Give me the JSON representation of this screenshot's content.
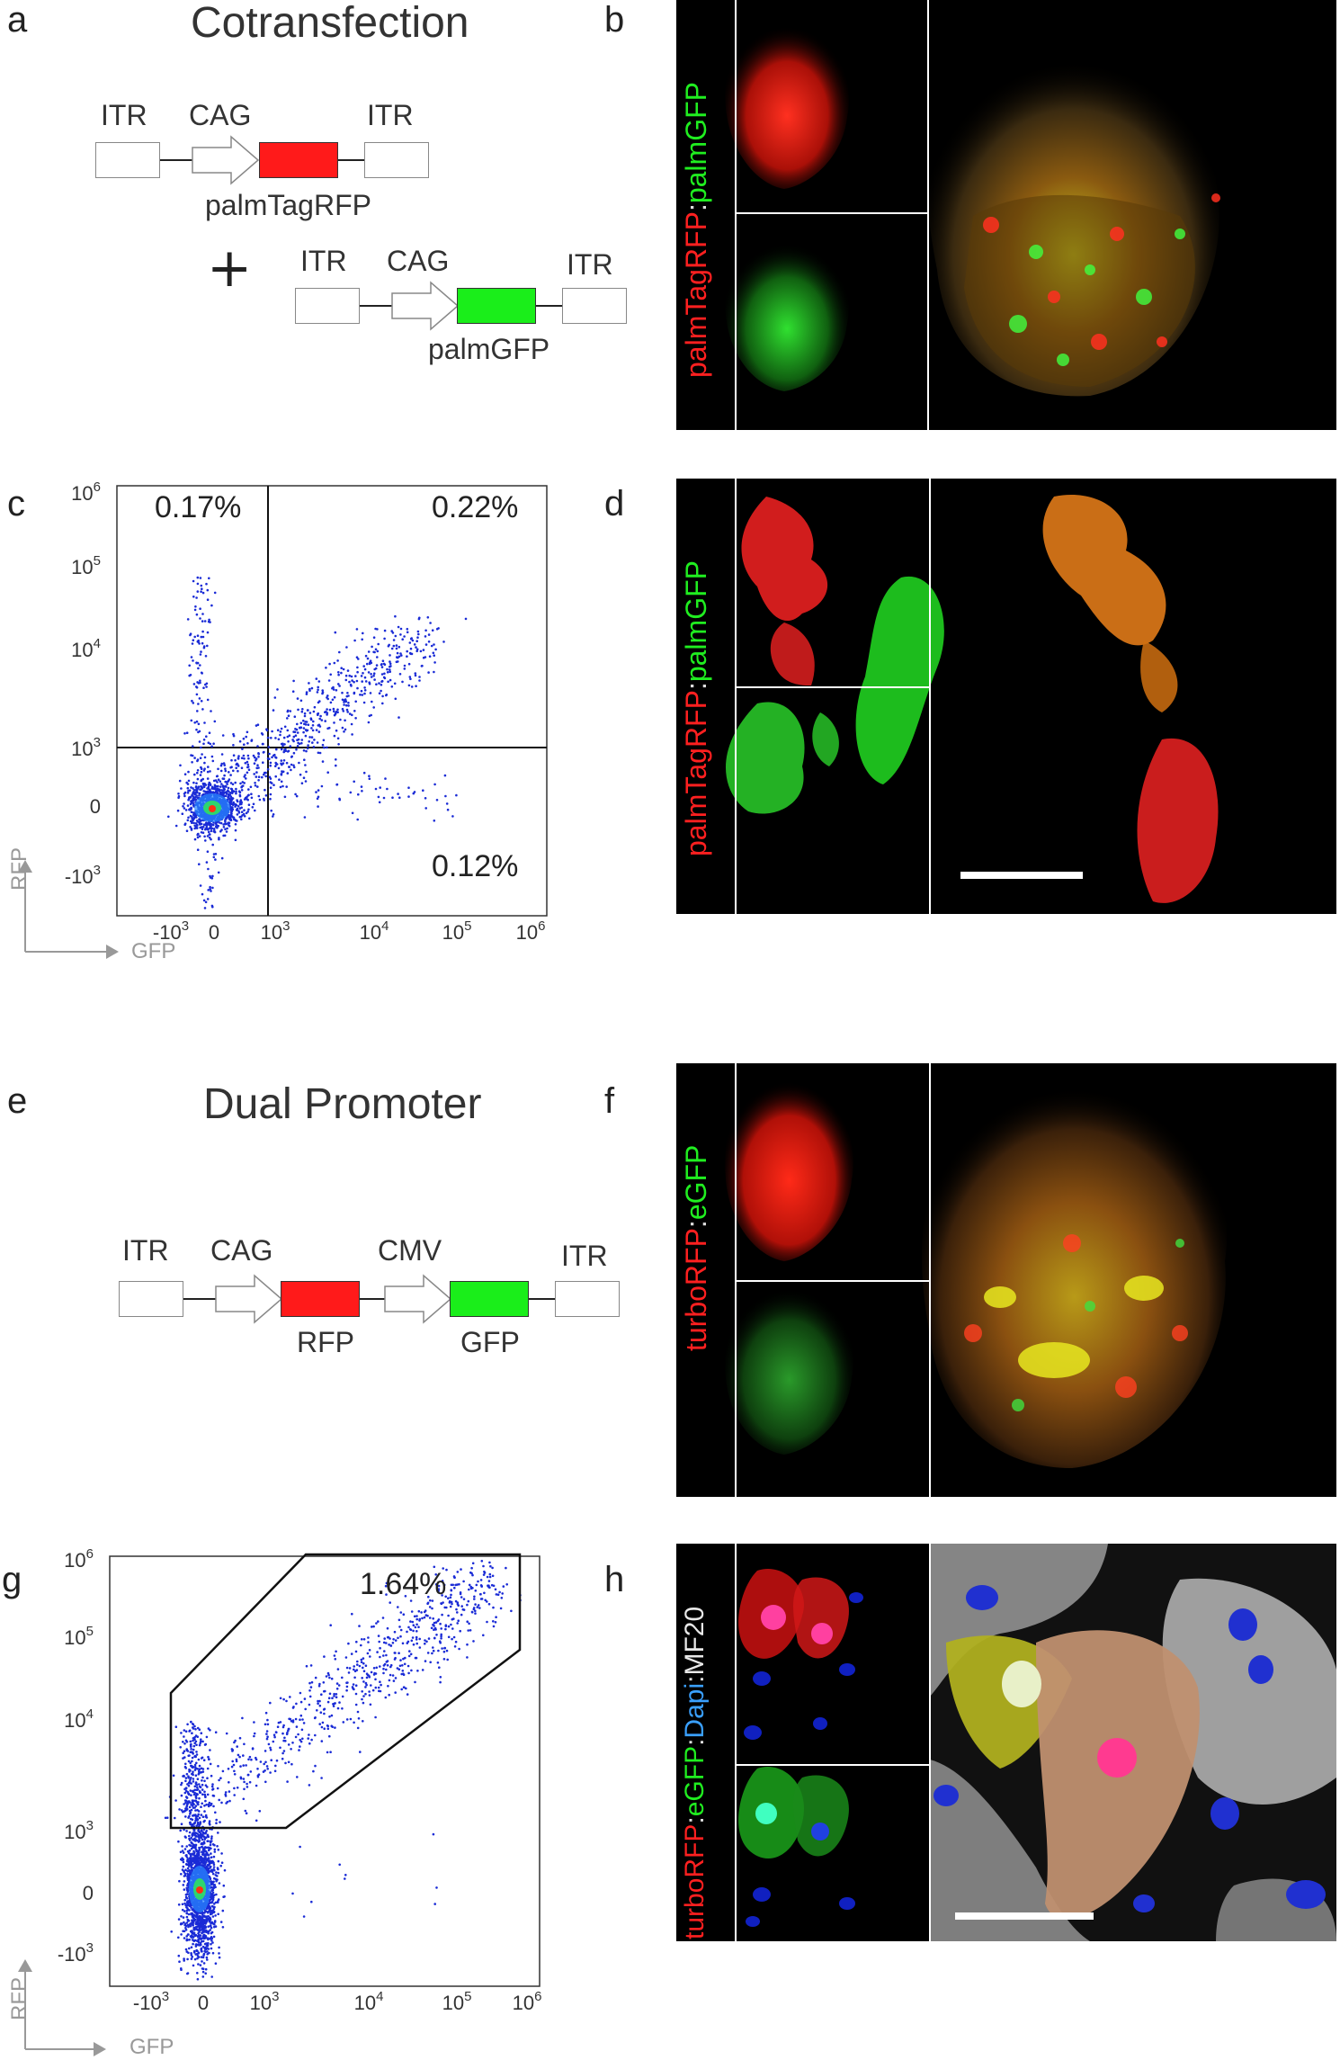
{
  "panels": {
    "a": {
      "letter": "a",
      "title": "Cotransfection",
      "construct1": {
        "itr_left": "ITR",
        "promoter": "CAG",
        "itr_right": "ITR",
        "gene": "palmTagRFP"
      },
      "plus": "+",
      "construct2": {
        "itr_left": "ITR",
        "promoter": "CAG",
        "itr_right": "ITR",
        "gene": "palmGFP"
      }
    },
    "b": {
      "letter": "b",
      "stain_red": "palmTagRFP",
      "stain_sep": ":",
      "stain_green": "palmGFP"
    },
    "c": {
      "letter": "c",
      "q_ul": "0.17%",
      "q_ur": "0.22%",
      "q_lr": "0.12%",
      "y_axis": "RFP",
      "x_axis": "GFP"
    },
    "d": {
      "letter": "d",
      "stain_red": "palmTagRFP",
      "stain_sep": ":",
      "stain_green": "palmGFP"
    },
    "e": {
      "letter": "e",
      "title": "Dual Promoter",
      "construct": {
        "itr_left": "ITR",
        "promoter1": "CAG",
        "promoter2": "CMV",
        "itr_right": "ITR",
        "gene1": "RFP",
        "gene2": "GFP"
      }
    },
    "f": {
      "letter": "f",
      "stain_red": "turboRFP",
      "stain_sep": ":",
      "stain_green": "eGFP"
    },
    "g": {
      "letter": "g",
      "gate_pct": "1.64%",
      "y_axis": "RFP",
      "x_axis": "GFP"
    },
    "h": {
      "letter": "h",
      "stain_red": "turboRFP",
      "sep1": ":",
      "stain_green": "eGFP",
      "sep2": ":",
      "stain_blue": "Dapi",
      "sep3": ":",
      "stain_white": "MF20"
    }
  },
  "axis_ticks": {
    "c_y": [
      {
        "b": "10",
        "e": "6"
      },
      {
        "b": "10",
        "e": "5"
      },
      {
        "b": "10",
        "e": "4"
      },
      {
        "b": "10",
        "e": "3"
      },
      {
        "b": "0",
        "e": ""
      },
      {
        "b": "-10",
        "e": "3"
      }
    ],
    "c_x": [
      {
        "b": "-10",
        "e": "3"
      },
      {
        "b": "0",
        "e": ""
      },
      {
        "b": "10",
        "e": "3"
      },
      {
        "b": "10",
        "e": "4"
      },
      {
        "b": "10",
        "e": "5"
      },
      {
        "b": "10",
        "e": "6"
      }
    ],
    "g_y": [
      {
        "b": "10",
        "e": "6"
      },
      {
        "b": "10",
        "e": "5"
      },
      {
        "b": "10",
        "e": "4"
      },
      {
        "b": "10",
        "e": "3"
      },
      {
        "b": "0",
        "e": ""
      },
      {
        "b": "-10",
        "e": "3"
      }
    ],
    "g_x": [
      {
        "b": "-10",
        "e": "3"
      },
      {
        "b": "0",
        "e": ""
      },
      {
        "b": "10",
        "e": "3"
      },
      {
        "b": "10",
        "e": "4"
      },
      {
        "b": "10",
        "e": "5"
      },
      {
        "b": "10",
        "e": "6"
      }
    ]
  },
  "colors": {
    "rfp": "#ff1a1a",
    "gfp": "#1aff1a",
    "dapi": "#2060ff",
    "mf20": "#dddddd",
    "dots": "#1a2bd6"
  }
}
